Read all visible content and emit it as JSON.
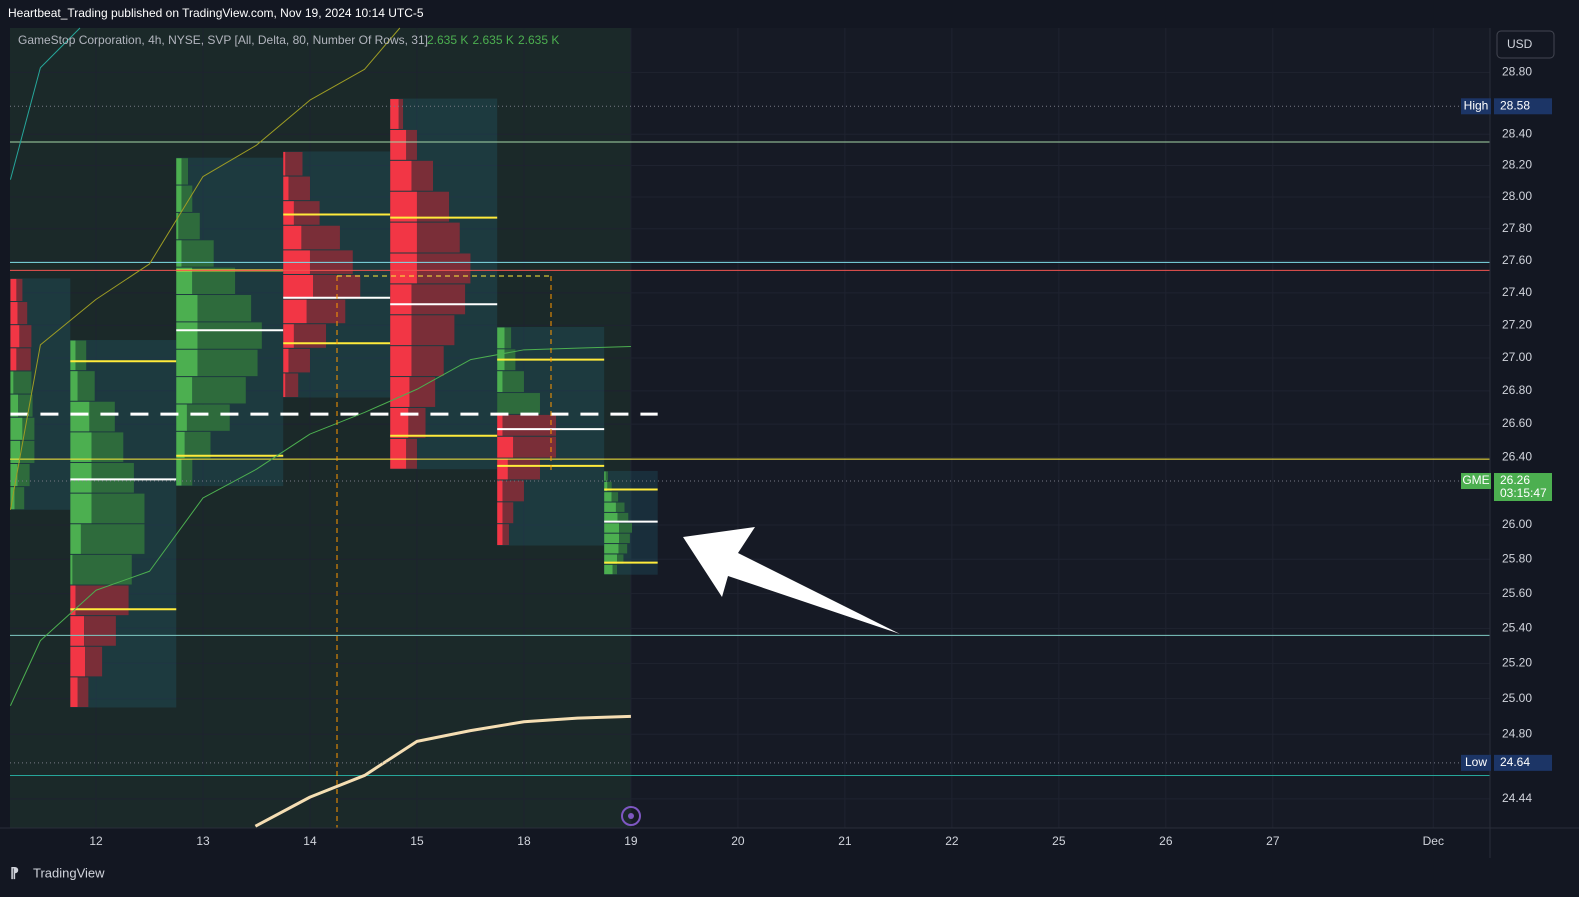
{
  "header": "Heartbeat_Trading published on TradingView.com, Nov 19, 2024 10:14 UTC-5",
  "brand": "TradingView",
  "currency": "USD",
  "chart_data": {
    "type": "line",
    "indicator": "GameStop Corporation, 4h, NYSE, SVP [All, Delta, 80, Number Of Rows, 31]",
    "indicator_values": [
      "2.635 K",
      "2.635 K",
      "2.635 K"
    ],
    "log": true,
    "grid": true,
    "ylim": [
      24.28,
      29.09
    ],
    "yticks": [
      24.44,
      {
        "value": 24.8,
        "label": "24.80"
      },
      {
        "value": 25.0,
        "label": "25.00"
      },
      {
        "value": 25.2,
        "label": "25.20"
      },
      {
        "value": 25.4,
        "label": "25.40"
      },
      {
        "value": 25.6,
        "label": "25.60"
      },
      {
        "value": 25.8,
        "label": "25.80"
      },
      {
        "value": 26.0,
        "label": "26.00"
      },
      {
        "value": 26.4,
        "label": "26.40"
      },
      {
        "value": 26.6,
        "label": "26.60"
      },
      {
        "value": 26.8,
        "label": "26.80"
      },
      {
        "value": 27.0,
        "label": "27.00"
      },
      {
        "value": 27.2,
        "label": "27.20"
      },
      {
        "value": 27.4,
        "label": "27.40"
      },
      {
        "value": 27.6,
        "label": "27.60"
      },
      {
        "value": 27.8,
        "label": "27.80"
      },
      {
        "value": 28.0,
        "label": "28.00"
      },
      {
        "value": 28.2,
        "label": "28.20"
      },
      {
        "value": 28.4,
        "label": "28.40"
      },
      {
        "value": 28.8,
        "label": "28.80"
      }
    ],
    "xlim": [
      -0.804,
      13.03
    ],
    "xticks": [
      {
        "value": 0,
        "label": "12"
      },
      {
        "value": 1,
        "label": "13"
      },
      {
        "value": 2,
        "label": "14"
      },
      {
        "value": 3,
        "label": "15"
      },
      {
        "value": 4,
        "label": "18"
      },
      {
        "value": 5,
        "label": "19"
      },
      {
        "value": 6,
        "label": "20"
      },
      {
        "value": 7,
        "label": "21"
      },
      {
        "value": 8,
        "label": "22"
      },
      {
        "value": 9,
        "label": "25"
      },
      {
        "value": 10,
        "label": "26"
      },
      {
        "value": 11,
        "label": "27"
      },
      {
        "value": 12.5,
        "label": "Dec"
      }
    ],
    "series": [
      {
        "color": "#26a69a",
        "width": 1,
        "x": [
          -0.8,
          -0.52,
          -0.15
        ],
        "values": [
          28.11,
          28.83,
          29.09
        ]
      },
      {
        "color": "#9e9d24",
        "width": 1,
        "x": [
          -0.8,
          -0.52,
          0,
          0.5,
          1.0,
          1.5,
          2.0,
          2.51,
          2.84
        ],
        "values": [
          26.09,
          27.08,
          27.36,
          27.58,
          28.13,
          28.33,
          28.62,
          28.82,
          29.09
        ]
      },
      {
        "color": "#4caf50",
        "width": 1,
        "x": [
          -0.8,
          -0.52,
          0,
          0.5,
          1.0,
          1.5,
          2.0,
          2.51,
          3.0,
          3.5,
          4.0,
          4.5,
          5.0
        ],
        "values": [
          24.96,
          25.33,
          25.62,
          25.73,
          26.16,
          26.33,
          26.54,
          26.67,
          26.81,
          26.99,
          27.05,
          27.06,
          27.07
        ]
      },
      {
        "color": "#f5deb3",
        "width": 3,
        "x": [
          1.49,
          2.0,
          2.51,
          3.0,
          3.5,
          4.0,
          4.5,
          5.0
        ],
        "values": [
          24.29,
          24.45,
          24.57,
          24.76,
          24.82,
          24.87,
          24.89,
          24.9
        ]
      }
    ],
    "levels": [
      {
        "price": 28.35,
        "color": "#a5d6a7"
      },
      {
        "price": 27.59,
        "color": "#80deea"
      },
      {
        "price": 27.54,
        "color": "#ef5350"
      },
      {
        "price": 26.39,
        "color": "#ffeb3b"
      },
      {
        "price": 25.36,
        "color": "#80cbc4"
      },
      {
        "price": 24.57,
        "color": "#26a69a"
      }
    ],
    "composite_poc": {
      "price": 26.66,
      "x0": -0.8,
      "x1": 5.25,
      "color": "#ffffff"
    },
    "profiles": [
      {
        "x0": -0.8,
        "x1": -0.24,
        "low": 26.09,
        "high": 27.49,
        "buy": [
          5,
          8,
          10,
          12,
          20,
          25,
          30,
          28,
          22,
          15
        ],
        "sell": [
          15,
          20,
          25,
          22,
          15,
          12,
          10,
          12,
          10,
          8
        ]
      },
      {
        "x0": -0.24,
        "x1": 0.75,
        "low": 24.95,
        "high": 27.11,
        "poc": 26.27,
        "vah": 26.98,
        "val": 25.51,
        "buy": [
          10,
          15,
          30,
          35,
          40,
          45,
          40,
          30,
          25,
          15,
          8,
          5
        ],
        "sell": [
          5,
          8,
          12,
          15,
          20,
          25,
          30,
          28,
          30,
          28,
          22,
          12
        ]
      },
      {
        "x0": 0.75,
        "x1": 1.75,
        "low": 26.23,
        "high": 28.25,
        "poc": 27.17,
        "vah": 27.54,
        "val": 26.41,
        "buy": [
          8,
          10,
          12,
          20,
          35,
          45,
          50,
          48,
          40,
          30,
          20,
          10
        ],
        "sell": [
          3,
          5,
          10,
          15,
          20,
          25,
          30,
          28,
          25,
          20,
          12,
          5
        ]
      },
      {
        "x0": 1.75,
        "x1": 2.75,
        "low": 26.76,
        "high": 28.29,
        "poc": 27.37,
        "vah": 27.89,
        "val": 27.09,
        "buy": [
          8,
          10,
          12,
          18,
          20,
          22,
          18,
          15,
          10,
          6
        ],
        "sell": [
          10,
          15,
          22,
          35,
          45,
          50,
          40,
          25,
          15,
          8
        ]
      },
      {
        "x0": 2.75,
        "x1": 3.75,
        "low": 26.33,
        "high": 28.63,
        "poc": 27.33,
        "vah": 27.87,
        "val": 26.53,
        "buy": [
          2,
          5,
          10,
          15,
          20,
          25,
          25,
          20,
          15,
          12,
          8,
          5
        ],
        "sell": [
          10,
          20,
          30,
          40,
          45,
          50,
          45,
          40,
          35,
          30,
          25,
          20
        ]
      },
      {
        "x0": 3.75,
        "x1": 4.75,
        "low": 25.88,
        "high": 27.19,
        "poc": 26.57,
        "vah": 26.99,
        "val": 26.35,
        "buy": [
          10,
          12,
          15,
          20,
          25,
          20,
          15,
          10,
          5,
          3
        ],
        "sell": [
          3,
          5,
          10,
          20,
          30,
          35,
          25,
          15,
          10,
          8
        ]
      },
      {
        "x0": 4.75,
        "x1": 5.25,
        "low": 25.71,
        "high": 26.32,
        "poc": 26.02,
        "vah": 26.21,
        "val": 25.78,
        "buy": [
          5,
          10,
          20,
          30,
          35,
          40,
          38,
          35,
          30,
          20
        ],
        "sell": [
          2,
          4,
          6,
          8,
          10,
          12,
          10,
          8,
          6,
          4
        ]
      }
    ],
    "badges": [
      {
        "label": "High",
        "value": 28.58,
        "color": "#1c3566"
      },
      {
        "label": "Low",
        "value": 24.64,
        "color": "#1c3566"
      },
      {
        "label": "GME",
        "value": 26.26,
        "sub": "03:15:47",
        "color": "#4caf50"
      }
    ]
  }
}
